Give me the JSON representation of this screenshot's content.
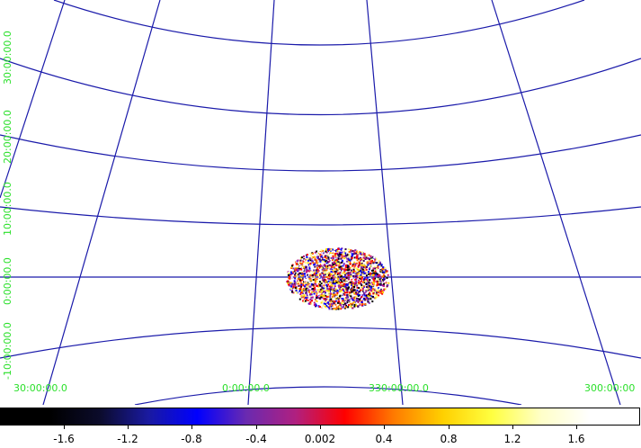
{
  "image": {
    "grid_color": "#1a1aaa",
    "label_color": "#2be02b",
    "blob_palette": [
      "#000000",
      "#3a0a60",
      "#0000ff",
      "#7a2bc0",
      "#c01080",
      "#ff0000",
      "#ff6a00",
      "#ffd200",
      "#ffff80",
      "#ffffff"
    ]
  },
  "ra_labels": [
    "30:00:00.0",
    "0:00:00.0",
    "330:00:00.0",
    "300:00:00"
  ],
  "dec_labels": [
    "-10:00:00.0",
    "0:00:00.0",
    "10:00:00.0",
    "20:00:00.0",
    "30:00:00.0"
  ],
  "colorbar": {
    "ticks": [
      "-1.6",
      "-1.2",
      "-0.8",
      "-0.4",
      "0.002",
      "0.4",
      "0.8",
      "1.2",
      "1.6"
    ],
    "gradient": [
      "#000000",
      "#000000",
      "#0b0b2a",
      "#1a1aa0",
      "#0000ff",
      "#6a2ab0",
      "#b02080",
      "#ff0000",
      "#ff7a00",
      "#ffd000",
      "#ffff40",
      "#ffffc8",
      "#ffffff",
      "#ffffff"
    ]
  }
}
